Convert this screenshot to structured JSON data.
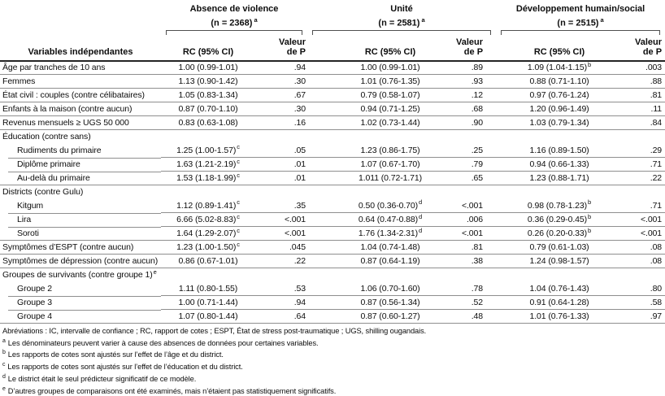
{
  "colors": {
    "rule": "#8f8f8f",
    "heavy_rule": "#252525",
    "text": "#0d0d0d",
    "background": "#ffffff"
  },
  "table": {
    "left_header": "Variables indépendantes",
    "subheader": {
      "rc": "RC (95% CI)",
      "p_line1": "Valeur",
      "p_line2": "de P"
    },
    "groups": [
      {
        "title": "Absence de violence",
        "n_label": "(n = 2368)",
        "n_sup": "a"
      },
      {
        "title": "Unité",
        "n_label": "(n = 2581)",
        "n_sup": "a"
      },
      {
        "title": "Développement humain/social",
        "n_label": "(n = 2515)",
        "n_sup": "a"
      }
    ],
    "rows": [
      {
        "type": "top",
        "no_line": true,
        "label": "Âge par tranches de 10 ans",
        "cells": [
          {
            "rc": "1.00 (0.99-1.01)",
            "sup": "",
            "p": ".94"
          },
          {
            "rc": "1.00 (0.99-1.01)",
            "sup": "",
            "p": ".89"
          },
          {
            "rc": "1.09 (1.04-1.15)",
            "sup": "b",
            "p": ".003"
          }
        ]
      },
      {
        "type": "top",
        "label": "Femmes",
        "cells": [
          {
            "rc": "1.13 (0.90-1.42)",
            "sup": "",
            "p": ".30"
          },
          {
            "rc": "1.01 (0.76-1.35)",
            "sup": "",
            "p": ".93"
          },
          {
            "rc": "0.88 (0.71-1.10)",
            "sup": "",
            "p": ".88"
          }
        ]
      },
      {
        "type": "top",
        "label": "État civil : couples (contre célibataires)",
        "cells": [
          {
            "rc": "1.05 (0.83-1.34)",
            "sup": "",
            "p": ".67"
          },
          {
            "rc": "0.79 (0.58-1.07)",
            "sup": "",
            "p": ".12"
          },
          {
            "rc": "0.97 (0.76-1.24)",
            "sup": "",
            "p": ".81"
          }
        ]
      },
      {
        "type": "top",
        "label": "Enfants à la maison (contre aucun)",
        "cells": [
          {
            "rc": "0.87 (0.70-1.10)",
            "sup": "",
            "p": ".30"
          },
          {
            "rc": "0.94 (0.71-1.25)",
            "sup": "",
            "p": ".68"
          },
          {
            "rc": "1.20 (0.96-1.49)",
            "sup": "",
            "p": ".11"
          }
        ]
      },
      {
        "type": "top",
        "label": "Revenus mensuels ≥ UGS 50 000",
        "cells": [
          {
            "rc": "0.83 (0.63-1.08)",
            "sup": "",
            "p": ".16"
          },
          {
            "rc": "1.02 (0.73-1.44)",
            "sup": "",
            "p": ".90"
          },
          {
            "rc": "1.03 (0.79-1.34)",
            "sup": "",
            "p": ".84"
          }
        ]
      },
      {
        "type": "group",
        "label": "Éducation (contre sans)",
        "label_sup": ""
      },
      {
        "type": "sub",
        "no_line": true,
        "label": "Rudiments du primaire",
        "cells": [
          {
            "rc": "1.25 (1.00-1.57)",
            "sup": "c",
            "p": ".05"
          },
          {
            "rc": "1.23 (0.86-1.75)",
            "sup": "",
            "p": ".25"
          },
          {
            "rc": "1.16 (0.89-1.50)",
            "sup": "",
            "p": ".29"
          }
        ]
      },
      {
        "type": "sub",
        "label": "Diplôme primaire",
        "cells": [
          {
            "rc": "1.63 (1.21-2.19)",
            "sup": "c",
            "p": ".01"
          },
          {
            "rc": "1.07 (0.67-1.70)",
            "sup": "",
            "p": ".79"
          },
          {
            "rc": "0.94 (0.66-1.33)",
            "sup": "",
            "p": ".71"
          }
        ]
      },
      {
        "type": "sub",
        "label": "Au-delà du primaire",
        "cells": [
          {
            "rc": "1.53 (1.18-1.99)",
            "sup": "c",
            "p": ".01"
          },
          {
            "rc": "1.011 (0.72-1.71)",
            "sup": "",
            "p": ".65"
          },
          {
            "rc": "1.23 (0.88-1.71)",
            "sup": "",
            "p": ".22"
          }
        ]
      },
      {
        "type": "group",
        "label": "Districts (contre Gulu)",
        "label_sup": ""
      },
      {
        "type": "sub",
        "no_line": true,
        "label": "Kitgum",
        "cells": [
          {
            "rc": "1.12 (0.89-1.41)",
            "sup": "c",
            "p": ".35"
          },
          {
            "rc": "0.50 (0.36-0.70)",
            "sup": "d",
            "p": "<.001"
          },
          {
            "rc": "0.98 (0.78-1.23)",
            "sup": "b",
            "p": ".71"
          }
        ]
      },
      {
        "type": "sub",
        "label": "Lira",
        "cells": [
          {
            "rc": "6.66 (5.02-8.83)",
            "sup": "c",
            "p": "<.001"
          },
          {
            "rc": "0.64 (0.47-0.88)",
            "sup": "d",
            "p": ".006"
          },
          {
            "rc": "0.36 (0.29-0.45)",
            "sup": "b",
            "p": "<.001"
          }
        ]
      },
      {
        "type": "sub",
        "label": "Soroti",
        "cells": [
          {
            "rc": "1.64 (1.29-2.07)",
            "sup": "c",
            "p": "<.001"
          },
          {
            "rc": "1.76 (1.34-2.31)",
            "sup": "d",
            "p": "<.001"
          },
          {
            "rc": "0.26 (0.20-0.33)",
            "sup": "b",
            "p": "<.001"
          }
        ]
      },
      {
        "type": "top",
        "label": "Symptômes d’ESPT (contre aucun)",
        "cells": [
          {
            "rc": "1.23 (1.00-1.50)",
            "sup": "c",
            "p": ".045"
          },
          {
            "rc": "1.04 (0.74-1.48)",
            "sup": "",
            "p": ".81"
          },
          {
            "rc": "0.79 (0.61-1.03)",
            "sup": "",
            "p": ".08"
          }
        ]
      },
      {
        "type": "top",
        "label": "Symptômes de dépression (contre aucun)",
        "cells": [
          {
            "rc": "0.86 (0.67-1.01)",
            "sup": "",
            "p": ".22"
          },
          {
            "rc": "0.87 (0.64-1.19)",
            "sup": "",
            "p": ".38"
          },
          {
            "rc": "1.24 (0.98-1.57)",
            "sup": "",
            "p": ".08"
          }
        ]
      },
      {
        "type": "group",
        "label": "Groupes de survivants (contre groupe 1)",
        "label_sup": "e"
      },
      {
        "type": "sub",
        "no_line": true,
        "label": "Groupe 2",
        "cells": [
          {
            "rc": "1.11 (0.80-1.55)",
            "sup": "",
            "p": ".53"
          },
          {
            "rc": "1.06 (0.70-1.60)",
            "sup": "",
            "p": ".78"
          },
          {
            "rc": "1.04 (0.76-1.43)",
            "sup": "",
            "p": ".80"
          }
        ]
      },
      {
        "type": "sub",
        "label": "Groupe 3",
        "cells": [
          {
            "rc": "1.00 (0.71-1.44)",
            "sup": "",
            "p": ".94"
          },
          {
            "rc": "0.87 (0.56-1.34)",
            "sup": "",
            "p": ".52"
          },
          {
            "rc": "0.91 (0.64-1.28)",
            "sup": "",
            "p": ".58"
          }
        ]
      },
      {
        "type": "sub",
        "label": "Groupe 4",
        "cells": [
          {
            "rc": "1.07 (0.80-1.44)",
            "sup": "",
            "p": ".64"
          },
          {
            "rc": "0.87 (0.60-1.27)",
            "sup": "",
            "p": ".48"
          },
          {
            "rc": "1.01 (0.76-1.33)",
            "sup": "",
            "p": ".97"
          }
        ]
      }
    ]
  },
  "footnotes": [
    {
      "sup": "",
      "text": "Abréviations : IC, intervalle de confiance ; RC, rapport de cotes ; ESPT, État de stress post-traumatique ; UGS, shilling ougandais."
    },
    {
      "sup": "a",
      "text": "Les dénominateurs peuvent varier à cause des absences de données pour certaines variables."
    },
    {
      "sup": "b",
      "text": "Les rapports de cotes sont ajustés sur l’effet de l’âge et du district."
    },
    {
      "sup": "c",
      "text": "Les rapports de cotes sont ajustés sur l’effet de l’éducation et du district."
    },
    {
      "sup": "d",
      "text": "Le district était le seul prédicteur significatif de ce modèle."
    },
    {
      "sup": "e",
      "text": "D’autres groupes de comparaisons ont été examinés, mais n’étaient pas statistiquement significatifs."
    }
  ]
}
